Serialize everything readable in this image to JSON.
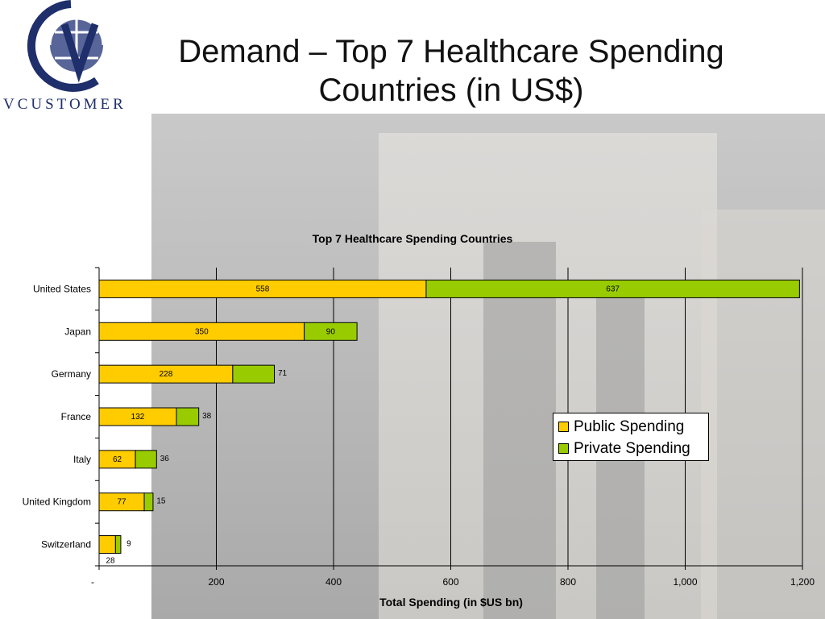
{
  "slide": {
    "title": "Demand – Top 7 Healthcare Spending Countries (in US$)",
    "logo_text": "VCUSTOMER"
  },
  "colors": {
    "public": "#FFCC00",
    "private": "#99CC00",
    "logo_blue": "#1f2f6b",
    "grid": "#000000"
  },
  "chart_data": {
    "type": "bar",
    "orientation": "horizontal",
    "stacked": true,
    "title": "Top 7 Healthcare Spending Countries",
    "xlabel": "Total Spending (in $US bn)",
    "ylabel": "",
    "xlim": [
      0,
      1200
    ],
    "xticks": [
      "-",
      "200",
      "400",
      "600",
      "800",
      "1,000",
      "1,200"
    ],
    "grid": "vertical",
    "legend_position": "right",
    "categories": [
      "United States",
      "Japan",
      "Germany",
      "France",
      "Italy",
      "United Kingdom",
      "Switzerland"
    ],
    "series": [
      {
        "name": "Public Spending",
        "values": [
          558,
          350,
          228,
          132,
          62,
          77,
          28
        ]
      },
      {
        "name": "Private Spending",
        "values": [
          637,
          90,
          71,
          38,
          36,
          15,
          9
        ]
      }
    ]
  }
}
